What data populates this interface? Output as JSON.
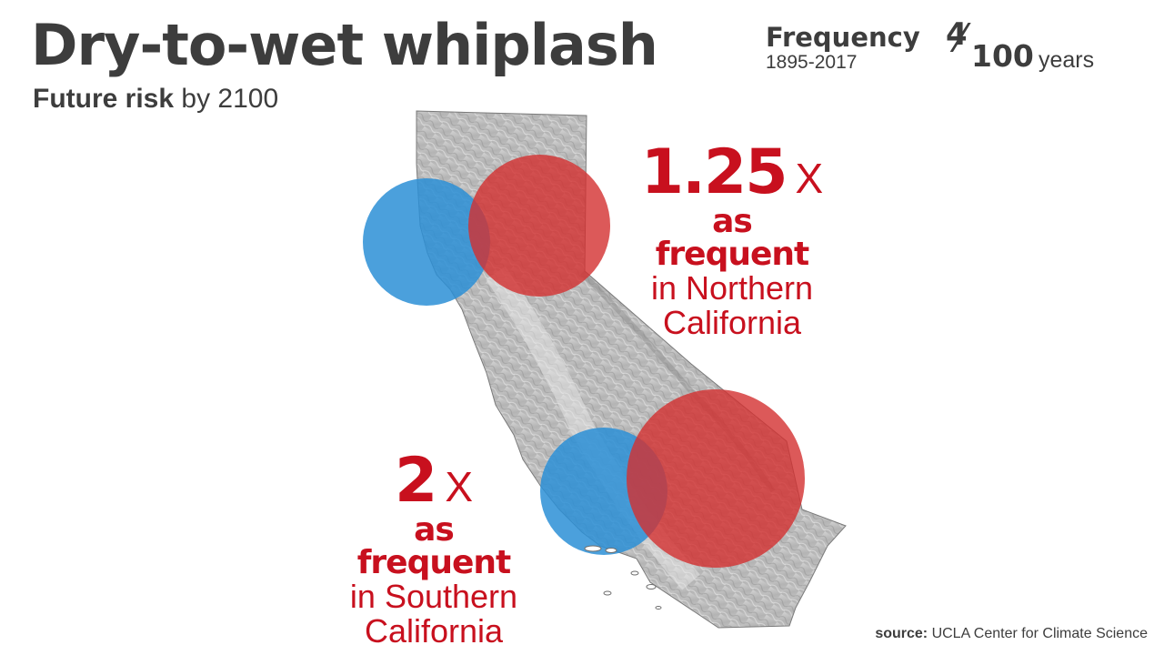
{
  "title": "Dry-to-wet whiplash",
  "subtitle": {
    "bold": "Future risk",
    "rest": "by 2100"
  },
  "frequency": {
    "label": "Frequency",
    "years": "1895-2017",
    "numerator": "4",
    "slash": "⁄",
    "denominator": "100",
    "unit": "years"
  },
  "north": {
    "multiplier": "1.25",
    "x": "X",
    "as_frequent": "as frequent",
    "region_line1": "in Northern",
    "region_line2": "California"
  },
  "south": {
    "multiplier": "2",
    "x": "X",
    "as_frequent": "as frequent",
    "region_line1": "in Southern",
    "region_line2": "California"
  },
  "source": {
    "label": "source:",
    "text": "UCLA Center for Climate Science"
  },
  "colors": {
    "title": "#3d3d3d",
    "accent_red": "#c8101e",
    "circle_red": "#d32f2f",
    "circle_blue": "#2b8fd6",
    "map_gray": "#b9b9b9"
  }
}
